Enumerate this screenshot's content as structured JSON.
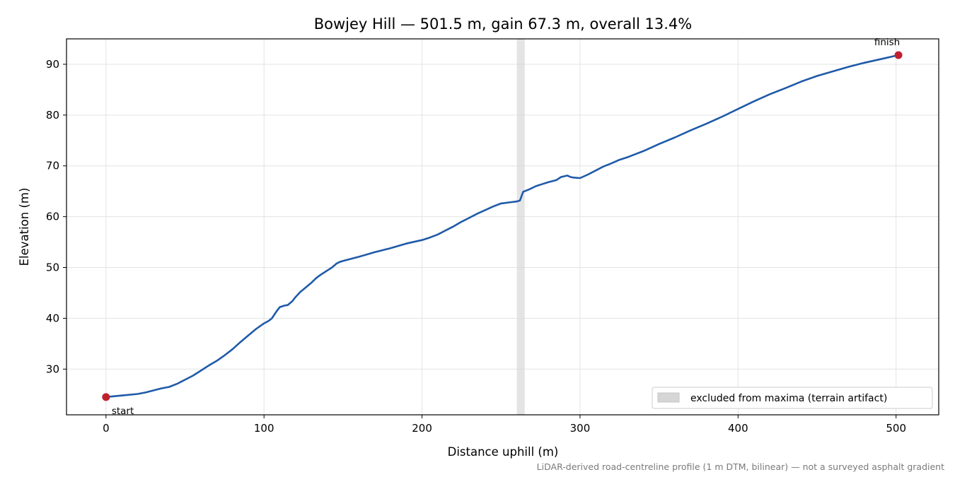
{
  "chart_data": {
    "type": "line",
    "title": "Bowjey Hill — 501.5 m, gain 67.3 m, overall 13.4%",
    "xlabel": "Distance uphill (m)",
    "ylabel": "Elevation (m)",
    "xlim": [
      -25,
      527
    ],
    "ylim": [
      21,
      95
    ],
    "xticks": [
      0,
      100,
      200,
      300,
      400,
      500
    ],
    "yticks": [
      30,
      40,
      50,
      60,
      70,
      80,
      90
    ],
    "grid": true,
    "line_color": "#1f5aa8",
    "marker_color": "#c0202e",
    "series": [
      {
        "x": [
          0,
          10,
          20,
          25,
          30,
          35,
          40,
          45,
          50,
          55,
          60,
          65,
          70,
          75,
          80,
          85,
          90,
          95,
          100,
          103,
          105,
          108,
          110,
          113,
          115,
          118,
          120,
          123,
          125,
          128,
          130,
          133,
          136,
          140,
          143,
          146,
          148,
          150,
          160,
          170,
          180,
          190,
          200,
          205,
          210,
          215,
          220,
          225,
          230,
          235,
          240,
          245,
          250,
          255,
          260,
          262,
          264,
          268,
          272,
          275,
          280,
          285,
          288,
          292,
          294,
          296,
          300,
          305,
          310,
          315,
          320,
          325,
          330,
          335,
          340,
          350,
          360,
          370,
          380,
          390,
          400,
          410,
          420,
          430,
          440,
          450,
          460,
          470,
          480,
          490,
          501.5
        ],
        "y": [
          24.5,
          24.8,
          25.1,
          25.4,
          25.8,
          26.2,
          26.5,
          27.1,
          27.9,
          28.7,
          29.7,
          30.7,
          31.6,
          32.7,
          33.9,
          35.3,
          36.6,
          37.9,
          39.0,
          39.5,
          40.0,
          41.4,
          42.2,
          42.5,
          42.6,
          43.4,
          44.2,
          45.2,
          45.7,
          46.5,
          47.0,
          47.9,
          48.6,
          49.4,
          50.0,
          50.8,
          51.1,
          51.3,
          52.1,
          53.0,
          53.8,
          54.7,
          55.4,
          55.9,
          56.5,
          57.3,
          58.1,
          59.0,
          59.8,
          60.6,
          61.3,
          62.0,
          62.6,
          62.8,
          63.0,
          63.2,
          64.9,
          65.4,
          66.0,
          66.3,
          66.8,
          67.2,
          67.8,
          68.1,
          67.8,
          67.7,
          67.6,
          68.3,
          69.1,
          69.9,
          70.5,
          71.2,
          71.7,
          72.3,
          72.9,
          74.3,
          75.6,
          77.0,
          78.3,
          79.7,
          81.2,
          82.7,
          84.1,
          85.3,
          86.6,
          87.7,
          88.6,
          89.5,
          90.3,
          91.0,
          91.8
        ]
      }
    ],
    "points": [
      {
        "label": "start",
        "x": 0,
        "y": 24.5
      },
      {
        "label": "finish",
        "x": 501.5,
        "y": 91.8
      }
    ],
    "excluded_band": {
      "x0": 260,
      "x1": 265,
      "color": "#d6d6d6"
    },
    "legend": {
      "label": "excluded from maxima (terrain artifact)",
      "placement": "lower-right"
    },
    "footnote": "LiDAR-derived road-centreline profile (1 m DTM, bilinear) — not a surveyed asphalt gradient"
  }
}
